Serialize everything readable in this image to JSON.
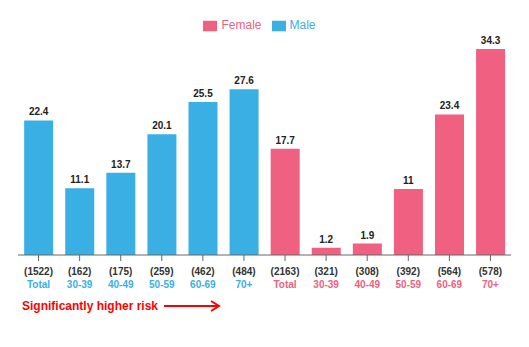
{
  "chart_data": {
    "type": "bar",
    "categories": [
      "(1522)\nTotal",
      "(162)\n30-39",
      "(175)\n40-49",
      "(259)\n50-59",
      "(462)\n60-69",
      "(484)\n70+",
      "(2163)\nTotal",
      "(321)\n30-39",
      "(308)\n40-49",
      "(392)\n50-59",
      "(564)\n60-69",
      "(578)\n70+"
    ],
    "series": [
      {
        "name": "Male",
        "color": "#3AAFE4",
        "values": [
          22.4,
          11.1,
          13.7,
          20.1,
          25.5,
          27.6,
          null,
          null,
          null,
          null,
          null,
          null
        ]
      },
      {
        "name": "Female",
        "color": "#F06080",
        "values": [
          null,
          null,
          null,
          null,
          null,
          null,
          17.7,
          1.2,
          1.9,
          11.0,
          23.4,
          34.3
        ]
      }
    ],
    "ylim": [
      0,
      37
    ],
    "tick_labels": "x",
    "data_labels": true,
    "legend": "top",
    "grid": false,
    "annotations": [
      {
        "text": "Significantly higher risk",
        "color": "#FF0000"
      }
    ]
  }
}
